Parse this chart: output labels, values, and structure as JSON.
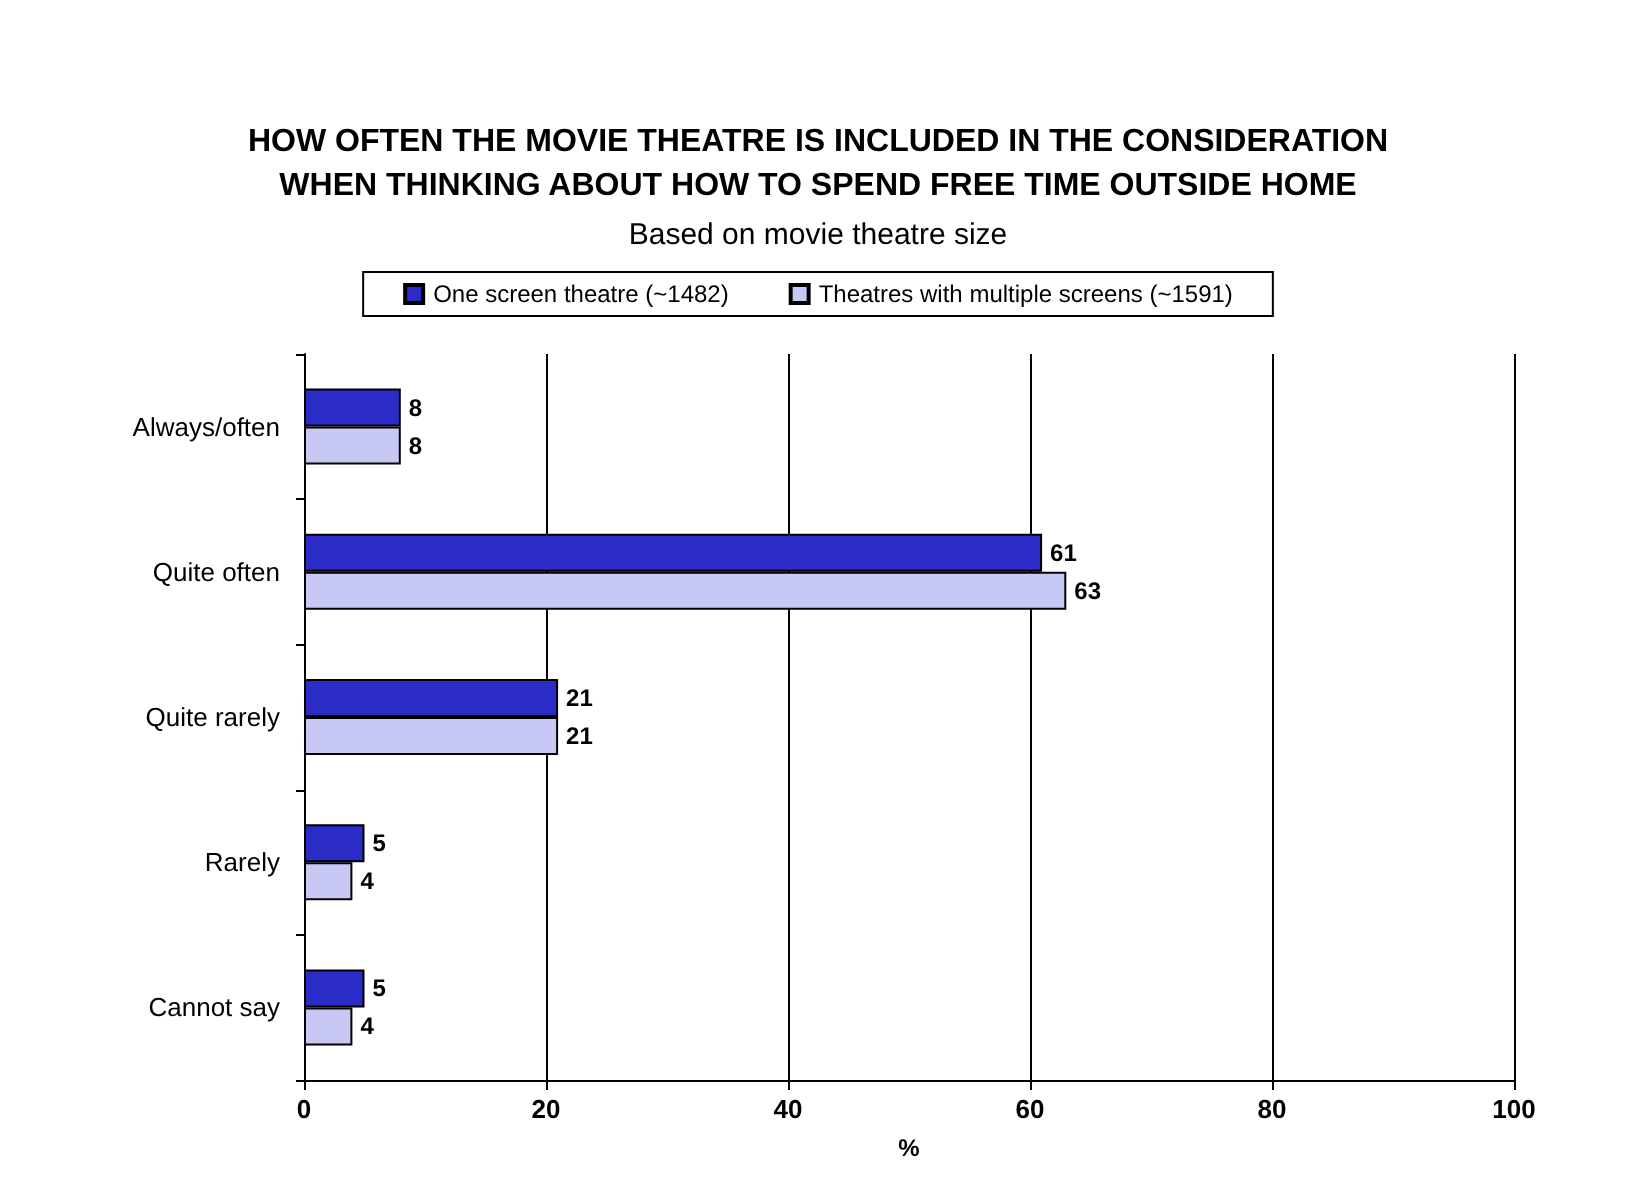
{
  "chart_data": {
    "type": "bar",
    "orientation": "horizontal",
    "title": "HOW OFTEN THE MOVIE THEATRE IS INCLUDED IN THE CONSIDERATION\nWHEN THINKING ABOUT HOW TO SPEND FREE TIME OUTSIDE HOME",
    "subtitle": "Based on movie theatre size",
    "xlabel": "%",
    "categories": [
      "Always/often",
      "Quite often",
      "Quite rarely",
      "Rarely",
      "Cannot say"
    ],
    "series": [
      {
        "name": "One screen theatre (~1482)",
        "color": "#2b2bc8",
        "values": [
          8,
          61,
          21,
          5,
          5
        ]
      },
      {
        "name": "Theatres with multiple screens (~1591)",
        "color": "#c8c8f4",
        "values": [
          8,
          63,
          21,
          4,
          4
        ]
      }
    ],
    "xlim": [
      0,
      100
    ],
    "xticks": [
      0,
      20,
      40,
      60,
      80,
      100
    ],
    "grid": "x",
    "legend": "top",
    "data_labels": true
  }
}
